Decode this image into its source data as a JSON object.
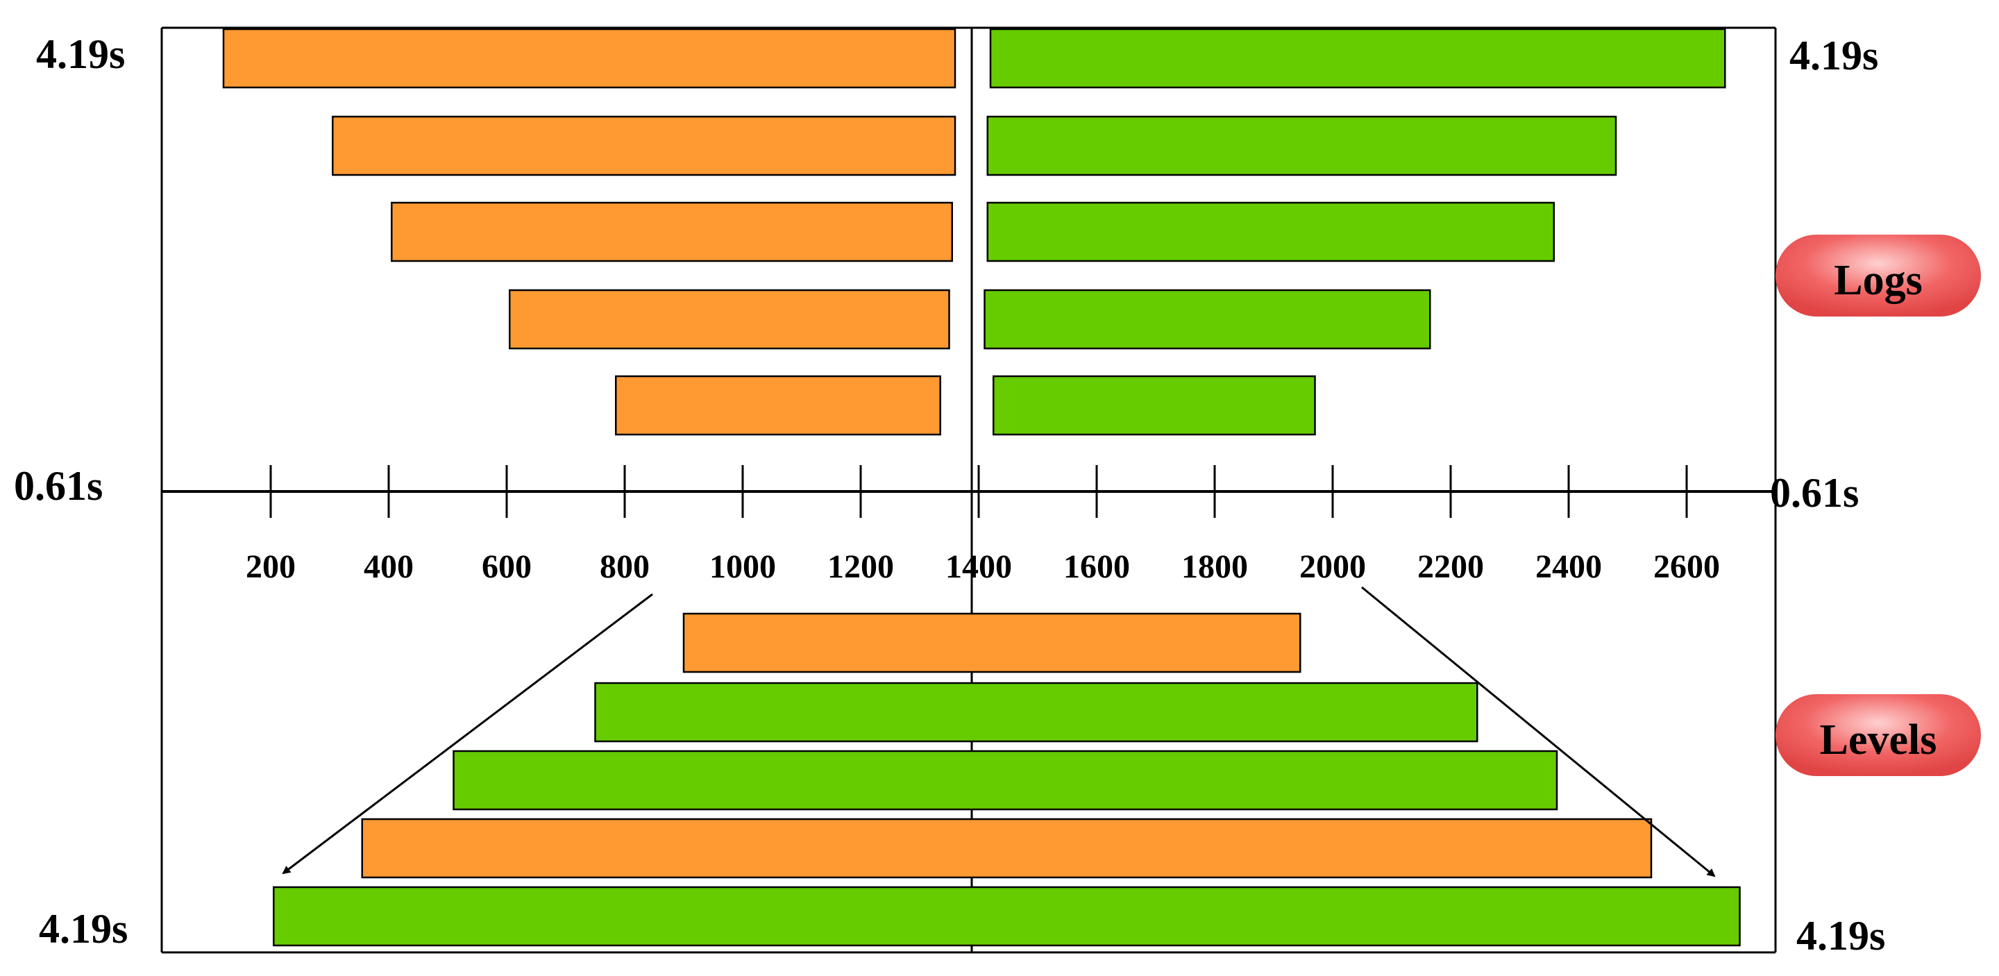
{
  "diagram": {
    "time_labels": {
      "top_left": "4.19s",
      "top_right": "4.19s",
      "mid_left": "0.61s",
      "mid_right": "0.61s",
      "bottom_left": "4.19s",
      "bottom_right": "4.19s"
    },
    "badges": {
      "logs": "Logs",
      "levels": "Levels"
    },
    "axis_ticks": [
      "200",
      "400",
      "600",
      "800",
      "1000",
      "1200",
      "1400",
      "1600",
      "1800",
      "2000",
      "2200",
      "2400",
      "2600"
    ],
    "colors": {
      "orange": "#FF9A33",
      "green": "#66CC00",
      "badge": "#F26666",
      "line": "#000000"
    },
    "logs_bars": [
      {
        "left": {
          "from": 120,
          "to": 1360
        },
        "right": {
          "from": 1420,
          "to": 2665
        }
      },
      {
        "left": {
          "from": 305,
          "to": 1360
        },
        "right": {
          "from": 1415,
          "to": 2480
        }
      },
      {
        "left": {
          "from": 405,
          "to": 1355
        },
        "right": {
          "from": 1415,
          "to": 2375
        }
      },
      {
        "left": {
          "from": 605,
          "to": 1350
        },
        "right": {
          "from": 1410,
          "to": 2165
        }
      },
      {
        "left": {
          "from": 785,
          "to": 1335
        },
        "right": {
          "from": 1425,
          "to": 1970
        }
      }
    ],
    "levels_bars": [
      {
        "color": "orange",
        "from": 900,
        "to": 1945
      },
      {
        "color": "green",
        "from": 750,
        "to": 2245
      },
      {
        "color": "green",
        "from": 510,
        "to": 2380
      },
      {
        "color": "orange",
        "from": 355,
        "to": 2540
      },
      {
        "color": "green",
        "from": 205,
        "to": 2690
      }
    ]
  }
}
